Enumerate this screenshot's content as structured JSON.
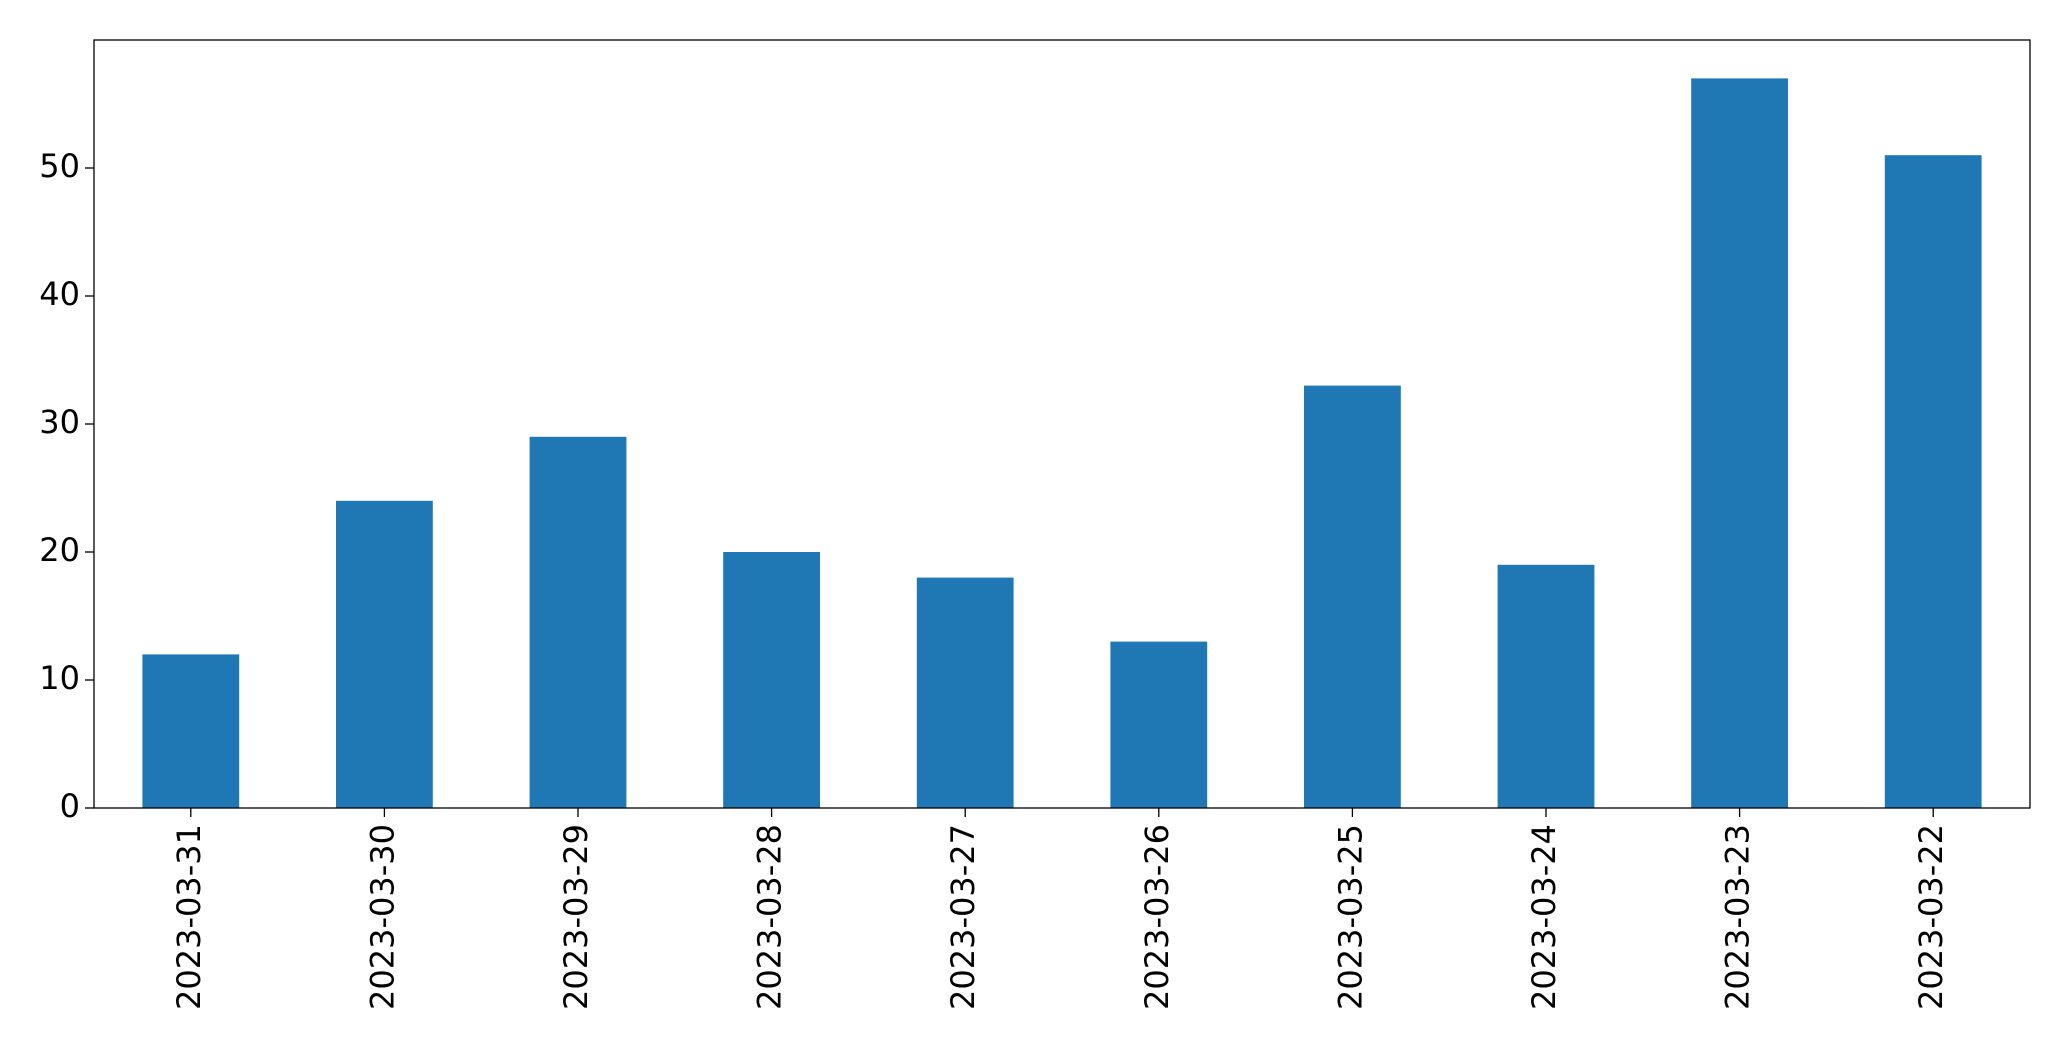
{
  "chart_data": {
    "type": "bar",
    "categories": [
      "2023-03-31",
      "2023-03-30",
      "2023-03-29",
      "2023-03-28",
      "2023-03-27",
      "2023-03-26",
      "2023-03-25",
      "2023-03-24",
      "2023-03-23",
      "2023-03-22"
    ],
    "values": [
      12,
      24,
      29,
      20,
      18,
      13,
      33,
      19,
      57,
      51
    ],
    "color": "#1f77b4",
    "ylim": [
      0,
      60
    ],
    "yticks": [
      0,
      10,
      20,
      30,
      40,
      50
    ],
    "grid": false
  }
}
